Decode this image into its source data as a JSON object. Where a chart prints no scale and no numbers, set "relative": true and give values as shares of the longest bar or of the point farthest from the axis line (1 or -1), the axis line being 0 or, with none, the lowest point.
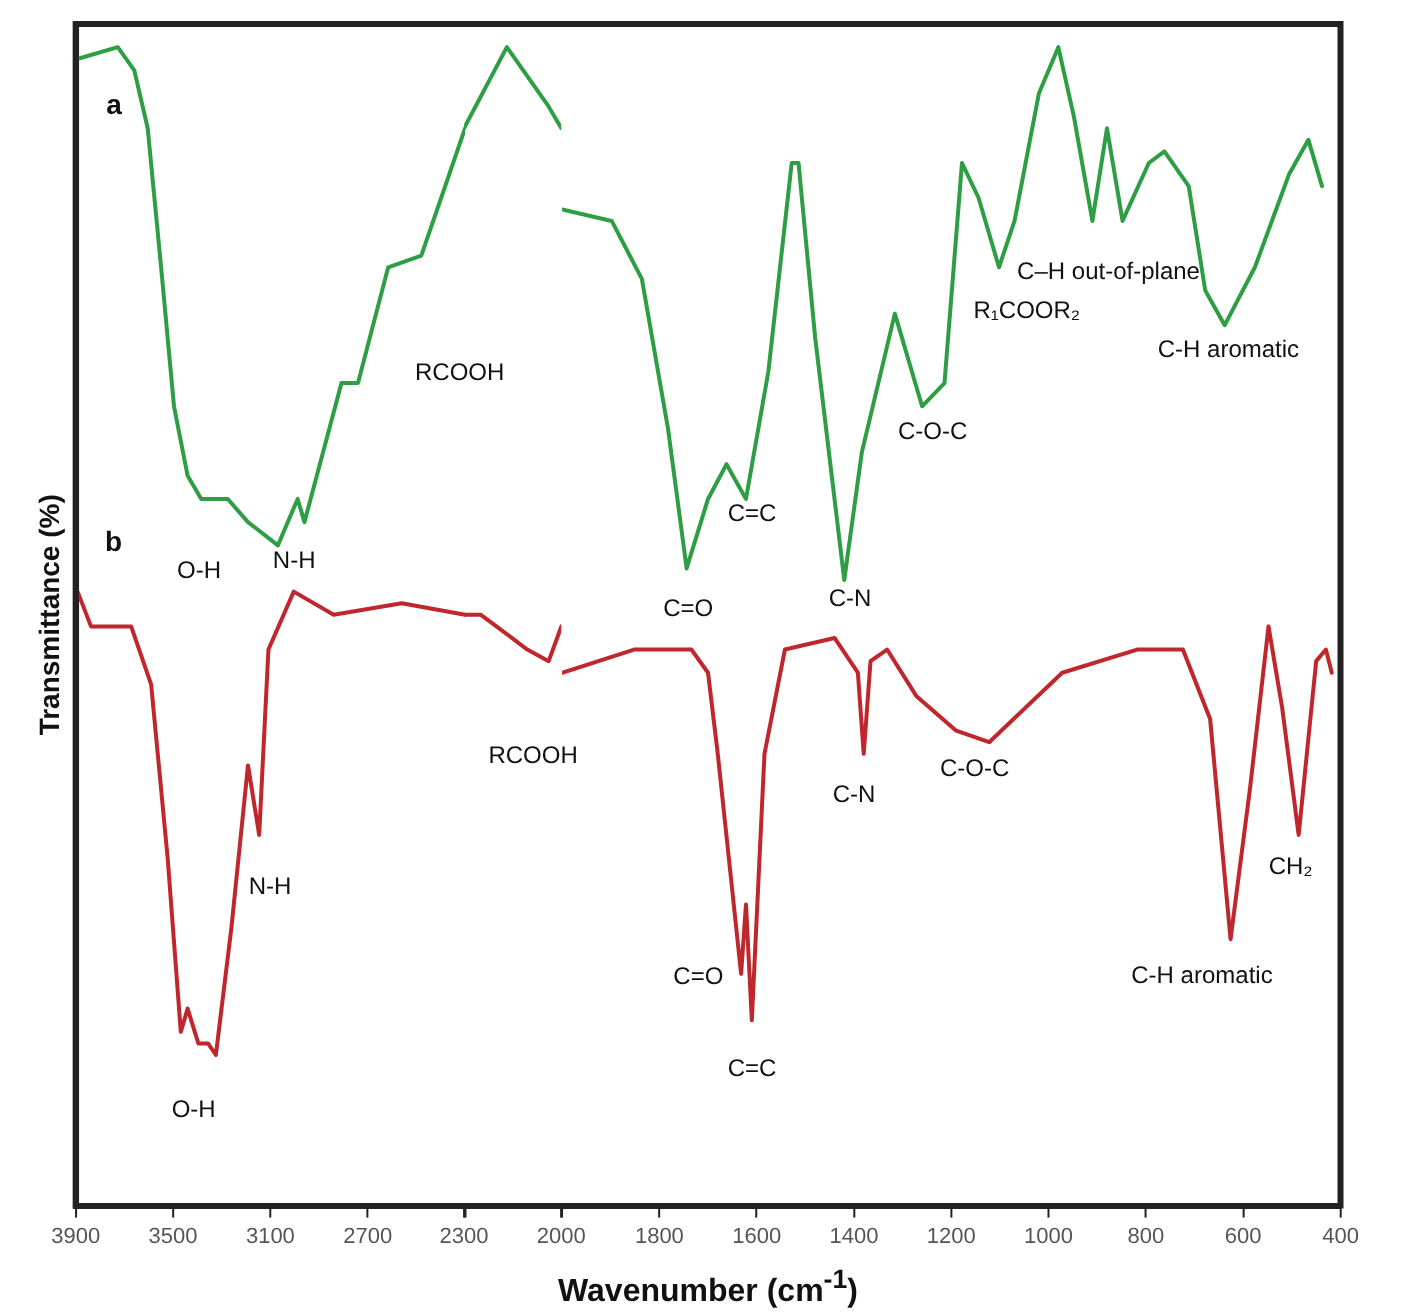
{
  "chart_data": [
    {
      "type": "line",
      "relative": true,
      "ylabel": "Transmittance (%)",
      "xlim": [
        3900,
        2300
      ],
      "xticks": [
        3900,
        3500,
        3100,
        2700,
        {
          "value": 2300,
          "label": null
        }
      ],
      "grid": false,
      "legend": false,
      "marker": "none",
      "line_style": "solid",
      "series": [
        {
          "name": "a",
          "color": "#2e9e44",
          "x": [
            3890,
            3727,
            3659,
            3604,
            3549,
            3496,
            3440,
            3384,
            3275,
            3192,
            3069,
            2988,
            2960,
            2808,
            2740,
            2616,
            2480,
            2300
          ],
          "values": [
            0.99,
            1,
            0.98,
            0.93,
            0.81,
            0.69,
            0.63,
            0.61,
            0.61,
            0.59,
            0.57,
            0.61,
            0.59,
            0.71,
            0.71,
            0.81,
            0.82,
            0.93
          ]
        },
        {
          "name": "b",
          "color": "#c0272d",
          "x": [
            3892,
            3837,
            3672,
            3590,
            3522,
            3468,
            3440,
            3396,
            3356,
            3324,
            3260,
            3192,
            3146,
            3108,
            3004,
            2840,
            2560,
            2300
          ],
          "values": [
            0.53,
            0.5,
            0.5,
            0.45,
            0.3,
            0.15,
            0.17,
            0.14,
            0.14,
            0.13,
            0.24,
            0.38,
            0.32,
            0.48,
            0.53,
            0.51,
            0.52,
            0.51
          ]
        }
      ],
      "annotations": [
        "O-H",
        "N-H",
        "RCOOH",
        "N-H",
        "O-H"
      ]
    },
    {
      "type": "line",
      "relative": true,
      "xlim": [
        2300,
        2000
      ],
      "xticks": [
        2300,
        2000
      ],
      "grid": false,
      "legend": false,
      "marker": "none",
      "line_style": "solid",
      "series": [
        {
          "color": "#2e9e44",
          "x": [
            2300,
            2168,
            2042,
            2000
          ],
          "values": [
            0.93,
            1,
            0.95,
            0.93
          ]
        },
        {
          "color": "#c0272d",
          "x": [
            2300,
            2248,
            2105,
            2039,
            2000
          ],
          "values": [
            0.51,
            0.51,
            0.48,
            0.47,
            0.5
          ]
        }
      ],
      "annotations": [
        "RCOOH"
      ]
    },
    {
      "type": "line",
      "relative": true,
      "xlabel": "Wavenumber (cm$^{-1}$)",
      "xlim": [
        2000,
        400
      ],
      "xticks": [
        {
          "value": 2000,
          "label": null
        },
        1800,
        1600,
        1400,
        1200,
        1000,
        800,
        600,
        400
      ],
      "grid": false,
      "legend": false,
      "marker": "none",
      "line_style": "solid",
      "series": [
        {
          "color": "#2e9e44",
          "x": [
            2000,
            1898,
            1836,
            1782,
            1744,
            1700,
            1662,
            1622,
            1576,
            1528,
            1514,
            1480,
            1420,
            1384,
            1316,
            1260,
            1214,
            1178,
            1144,
            1102,
            1070,
            1020,
            980,
            948,
            910,
            880,
            848,
            794,
            762,
            712,
            678,
            638,
            576,
            506,
            466,
            438
          ],
          "values": [
            0.86,
            0.85,
            0.8,
            0.67,
            0.55,
            0.61,
            0.64,
            0.61,
            0.72,
            0.9,
            0.9,
            0.75,
            0.54,
            0.65,
            0.77,
            0.69,
            0.71,
            0.9,
            0.87,
            0.81,
            0.85,
            0.96,
            1,
            0.94,
            0.85,
            0.93,
            0.85,
            0.9,
            0.91,
            0.88,
            0.79,
            0.76,
            0.81,
            0.89,
            0.92,
            0.88
          ]
        },
        {
          "color": "#c0272d",
          "x": [
            2000,
            1852,
            1734,
            1700,
            1680,
            1632,
            1622,
            1610,
            1584,
            1542,
            1440,
            1392,
            1380,
            1366,
            1332,
            1272,
            1190,
            1122,
            972,
            818,
            724,
            668,
            626,
            586,
            548,
            520,
            486,
            450,
            430,
            418
          ],
          "values": [
            0.46,
            0.48,
            0.48,
            0.46,
            0.39,
            0.2,
            0.26,
            0.16,
            0.39,
            0.48,
            0.49,
            0.46,
            0.39,
            0.47,
            0.48,
            0.44,
            0.41,
            0.4,
            0.46,
            0.48,
            0.48,
            0.42,
            0.23,
            0.36,
            0.5,
            0.43,
            0.32,
            0.47,
            0.48,
            0.46
          ]
        }
      ],
      "annotations": [
        "C=O",
        "C=C",
        "C-N",
        "C-O-C",
        "R₁COOR₂",
        "C–H out-of-plane",
        "C-H aromatic",
        "C=O",
        "C=C",
        "C-N",
        "C-O-C",
        "C-H aromatic",
        "CH₂"
      ]
    }
  ]
}
